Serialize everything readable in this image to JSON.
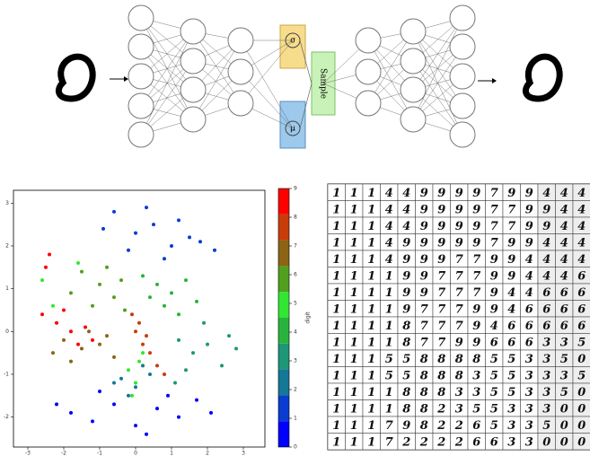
{
  "diagram": {
    "sigma": "σ",
    "mu": "μ",
    "sample": "Sample"
  },
  "chart_data": {
    "type": "scatter",
    "xlim": [
      -3.4,
      3.6
    ],
    "ylim": [
      -2.7,
      3.3
    ],
    "xticks": [
      -3,
      -2,
      -1,
      0,
      1,
      2,
      3
    ],
    "yticks": [
      -2,
      -1,
      0,
      1,
      2,
      3
    ],
    "colorbar_label": "digit",
    "colorbar_ticks": [
      0,
      1,
      2,
      3,
      4,
      5,
      6,
      7,
      8,
      9
    ],
    "series": [
      {
        "color": "#0000ff",
        "x": [
          -1.8,
          -1.2,
          -0.6,
          0,
          0.6,
          1.2,
          1.7,
          -1,
          0.3,
          0.9,
          -2.2,
          2.1
        ],
        "y": [
          -1.9,
          -2.1,
          -1.7,
          -2.2,
          -1.8,
          -2,
          -1.6,
          -1.4,
          -2.4,
          -1.5,
          -1.7,
          -1.9
        ]
      },
      {
        "color": "#0a3cd2",
        "x": [
          -0.6,
          0,
          0.5,
          1,
          1.5,
          -0.2,
          0.8,
          1.8,
          0.3,
          1.2,
          2.2,
          -0.9
        ],
        "y": [
          2.8,
          2.3,
          2.5,
          2,
          2.2,
          1.9,
          1.7,
          2.1,
          2.9,
          2.6,
          1.9,
          2.4
        ]
      },
      {
        "color": "#147896",
        "x": [
          -0.4,
          0,
          0.4,
          -0.2,
          0.2,
          -0.6
        ],
        "y": [
          -1.1,
          -1.3,
          -1,
          -1.5,
          -0.8,
          -1.2
        ]
      },
      {
        "color": "#1e9678",
        "x": [
          1.2,
          1.6,
          2,
          2.4,
          1.4,
          1.9,
          2.6,
          1.1,
          2.8
        ],
        "y": [
          -0.2,
          -0.5,
          -0.3,
          -0.8,
          -0.9,
          0.2,
          -0.1,
          -1.2,
          -0.4
        ]
      },
      {
        "color": "#28b43c",
        "x": [
          0.2,
          0.6,
          1,
          1.4,
          0.8,
          1.2,
          0.4,
          1.7
        ],
        "y": [
          1.3,
          1.1,
          0.9,
          1.2,
          0.6,
          0.4,
          0.8,
          0.7
        ]
      },
      {
        "color": "#32e632",
        "x": [
          -0.2,
          0,
          0.1,
          -2.6,
          -2.3,
          -1.6,
          -0.1,
          0.2
        ],
        "y": [
          -0.9,
          -1.2,
          -0.7,
          1.2,
          0.6,
          1.6,
          -1.5,
          -0.5
        ]
      },
      {
        "color": "#50a01e",
        "x": [
          -1.5,
          -1,
          -0.6,
          -1.2,
          -0.3,
          -1.8,
          -0.8,
          -0.4
        ],
        "y": [
          1.4,
          1.1,
          0.8,
          0.6,
          0.5,
          0.9,
          1.5,
          1.2
        ]
      },
      {
        "color": "#8c6414",
        "x": [
          -2,
          -1.5,
          -1,
          -0.6,
          -1.3,
          -1.8,
          -0.8,
          -2.3
        ],
        "y": [
          -0.2,
          -0.4,
          -0.3,
          -0.6,
          0,
          -0.7,
          -0.1,
          -0.5
        ]
      },
      {
        "color": "#c83c0a",
        "x": [
          0,
          0.2,
          0.4,
          0.6,
          0.1,
          0.3,
          0.8,
          -0.1
        ],
        "y": [
          0,
          -0.3,
          -0.5,
          -0.8,
          0.2,
          -0.1,
          -1,
          0.4
        ]
      },
      {
        "color": "#ff0000",
        "x": [
          -2.6,
          -2.2,
          -1.8,
          -1.4,
          -2.4,
          -1.6,
          -2,
          -2.5,
          -1.2
        ],
        "y": [
          0.4,
          0.2,
          0,
          0.1,
          1.8,
          -0.3,
          0.5,
          1.5,
          -0.2
        ]
      }
    ]
  },
  "digit_grid": {
    "rows": [
      [
        1,
        1,
        1,
        4,
        4,
        9,
        9,
        9,
        9,
        7,
        9,
        9,
        4,
        4,
        4
      ],
      [
        1,
        1,
        1,
        4,
        4,
        9,
        9,
        9,
        9,
        7,
        7,
        9,
        9,
        4,
        4
      ],
      [
        1,
        1,
        1,
        4,
        4,
        9,
        9,
        9,
        9,
        7,
        7,
        9,
        9,
        4,
        4
      ],
      [
        1,
        1,
        1,
        4,
        9,
        9,
        9,
        9,
        9,
        7,
        9,
        9,
        4,
        4,
        4
      ],
      [
        1,
        1,
        1,
        4,
        9,
        9,
        9,
        7,
        7,
        9,
        9,
        4,
        4,
        4,
        4
      ],
      [
        1,
        1,
        1,
        1,
        9,
        9,
        7,
        7,
        7,
        9,
        9,
        4,
        4,
        4,
        6
      ],
      [
        1,
        1,
        1,
        1,
        9,
        9,
        7,
        7,
        7,
        9,
        4,
        4,
        6,
        6,
        6
      ],
      [
        1,
        1,
        1,
        1,
        9,
        7,
        7,
        7,
        9,
        9,
        4,
        6,
        6,
        6,
        6
      ],
      [
        1,
        1,
        1,
        1,
        8,
        7,
        7,
        7,
        9,
        4,
        6,
        6,
        6,
        6,
        6
      ],
      [
        1,
        1,
        1,
        1,
        8,
        7,
        7,
        9,
        9,
        6,
        6,
        6,
        3,
        3,
        5
      ],
      [
        1,
        1,
        1,
        5,
        5,
        8,
        8,
        8,
        8,
        5,
        5,
        3,
        3,
        5,
        0
      ],
      [
        1,
        1,
        1,
        5,
        5,
        8,
        8,
        8,
        3,
        5,
        5,
        3,
        3,
        3,
        5
      ],
      [
        1,
        1,
        1,
        1,
        8,
        8,
        8,
        3,
        3,
        5,
        5,
        3,
        3,
        5,
        0
      ],
      [
        1,
        1,
        1,
        1,
        8,
        8,
        2,
        3,
        5,
        5,
        3,
        3,
        3,
        0,
        0
      ],
      [
        1,
        1,
        1,
        7,
        9,
        8,
        2,
        2,
        6,
        5,
        3,
        3,
        5,
        0,
        0
      ],
      [
        1,
        1,
        1,
        7,
        2,
        2,
        2,
        2,
        6,
        6,
        3,
        3,
        0,
        0,
        0
      ]
    ]
  }
}
